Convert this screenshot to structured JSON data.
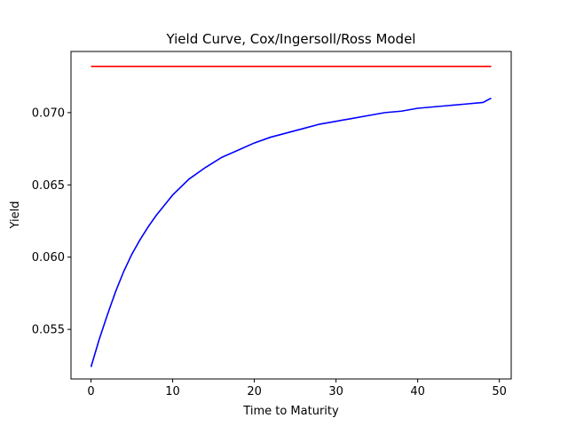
{
  "chart_data": {
    "type": "line",
    "title": "Yield Curve, Cox/Ingersoll/Ross Model",
    "xlabel": "Time to Maturity",
    "ylabel": "Yield",
    "xlim": [
      -2.45,
      51.45
    ],
    "ylim": [
      0.05157,
      0.07423
    ],
    "xticks": [
      0,
      10,
      20,
      30,
      40,
      50
    ],
    "yticks": [
      0.055,
      0.06,
      0.065,
      0.07
    ],
    "ytick_labels": [
      "0.055",
      "0.060",
      "0.065",
      "0.070"
    ],
    "grid": false,
    "legend": "none",
    "series": [
      {
        "color": "#ff0000",
        "x": [
          0,
          49
        ],
        "y": [
          0.0732,
          0.0732
        ]
      },
      {
        "color": "#0000ff",
        "x": [
          0,
          1,
          2,
          3,
          4,
          5,
          6,
          7,
          8,
          9,
          10,
          12,
          14,
          16,
          18,
          20,
          22,
          24,
          26,
          28,
          30,
          32,
          34,
          36,
          38,
          40,
          42,
          44,
          46,
          48,
          49
        ],
        "y": [
          0.0524,
          0.0543,
          0.056,
          0.0576,
          0.059,
          0.0602,
          0.0612,
          0.0621,
          0.0629,
          0.0636,
          0.0643,
          0.0654,
          0.0662,
          0.0669,
          0.0674,
          0.0679,
          0.0683,
          0.0686,
          0.0689,
          0.0692,
          0.0694,
          0.0696,
          0.0698,
          0.07,
          0.0701,
          0.0703,
          0.0704,
          0.0705,
          0.0706,
          0.0707,
          0.071
        ]
      }
    ]
  }
}
